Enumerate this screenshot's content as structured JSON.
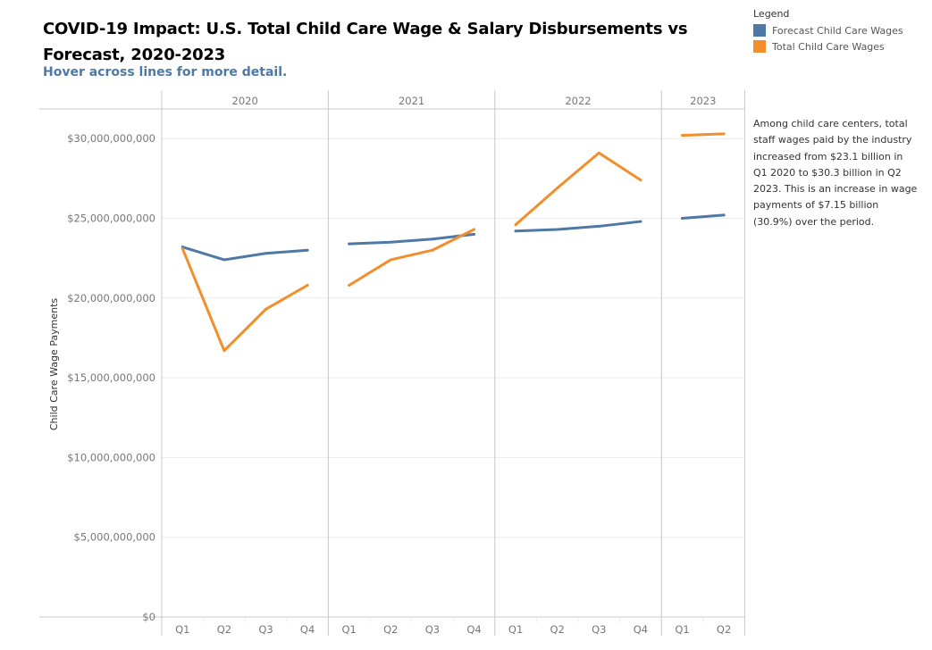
{
  "header": {
    "title": "COVID-19 Impact: U.S. Total Child Care Wage & Salary Disbursements vs Forecast, 2020-2023",
    "subtitle": "Hover across lines for more detail."
  },
  "legend": {
    "title": "Legend",
    "items": [
      {
        "label": "Forecast Child Care Wages",
        "color": "#4e79a7"
      },
      {
        "label": "Total Child Care Wages",
        "color": "#f28e2b"
      }
    ]
  },
  "annotation": "Among child care centers, total staff wages paid by the industry increased from $23.1 billion in Q1 2020 to $30.3 billion in Q2 2023. This is an increase in wage payments of $7.15 billion (30.9%) over the period.",
  "chart_data": {
    "type": "line",
    "title": "COVID-19 Impact: U.S. Total Child Care Wage & Salary Disbursements vs Forecast, 2020-2023",
    "xlabel": "",
    "ylabel": "Child Care Wage Payments",
    "ylim": [
      0,
      32000000000
    ],
    "yticks": [
      0,
      5000000000,
      10000000000,
      15000000000,
      20000000000,
      25000000000,
      30000000000
    ],
    "ytick_labels": [
      "$0",
      "$5,000,000,000",
      "$10,000,000,000",
      "$15,000,000,000",
      "$20,000,000,000",
      "$25,000,000,000",
      "$30,000,000,000"
    ],
    "grid": true,
    "legend_position": "top-right",
    "panels": [
      {
        "year": "2020",
        "quarters": [
          "Q1",
          "Q2",
          "Q3",
          "Q4"
        ]
      },
      {
        "year": "2021",
        "quarters": [
          "Q1",
          "Q2",
          "Q3",
          "Q4"
        ]
      },
      {
        "year": "2022",
        "quarters": [
          "Q1",
          "Q2",
          "Q3",
          "Q4"
        ]
      },
      {
        "year": "2023",
        "quarters": [
          "Q1",
          "Q2"
        ]
      }
    ],
    "series": [
      {
        "name": "Forecast Child Care Wages",
        "color": "#4e79a7",
        "values": [
          [
            23200000000,
            22400000000,
            22800000000,
            23000000000
          ],
          [
            23400000000,
            23500000000,
            23700000000,
            24000000000
          ],
          [
            24200000000,
            24300000000,
            24500000000,
            24800000000
          ],
          [
            25000000000,
            25200000000
          ]
        ]
      },
      {
        "name": "Total Child Care Wages",
        "color": "#f28e2b",
        "values": [
          [
            23100000000,
            16700000000,
            19300000000,
            20800000000
          ],
          [
            20800000000,
            22400000000,
            23000000000,
            24300000000
          ],
          [
            24600000000,
            26900000000,
            29100000000,
            27400000000
          ],
          [
            30200000000,
            30300000000
          ]
        ]
      }
    ]
  }
}
